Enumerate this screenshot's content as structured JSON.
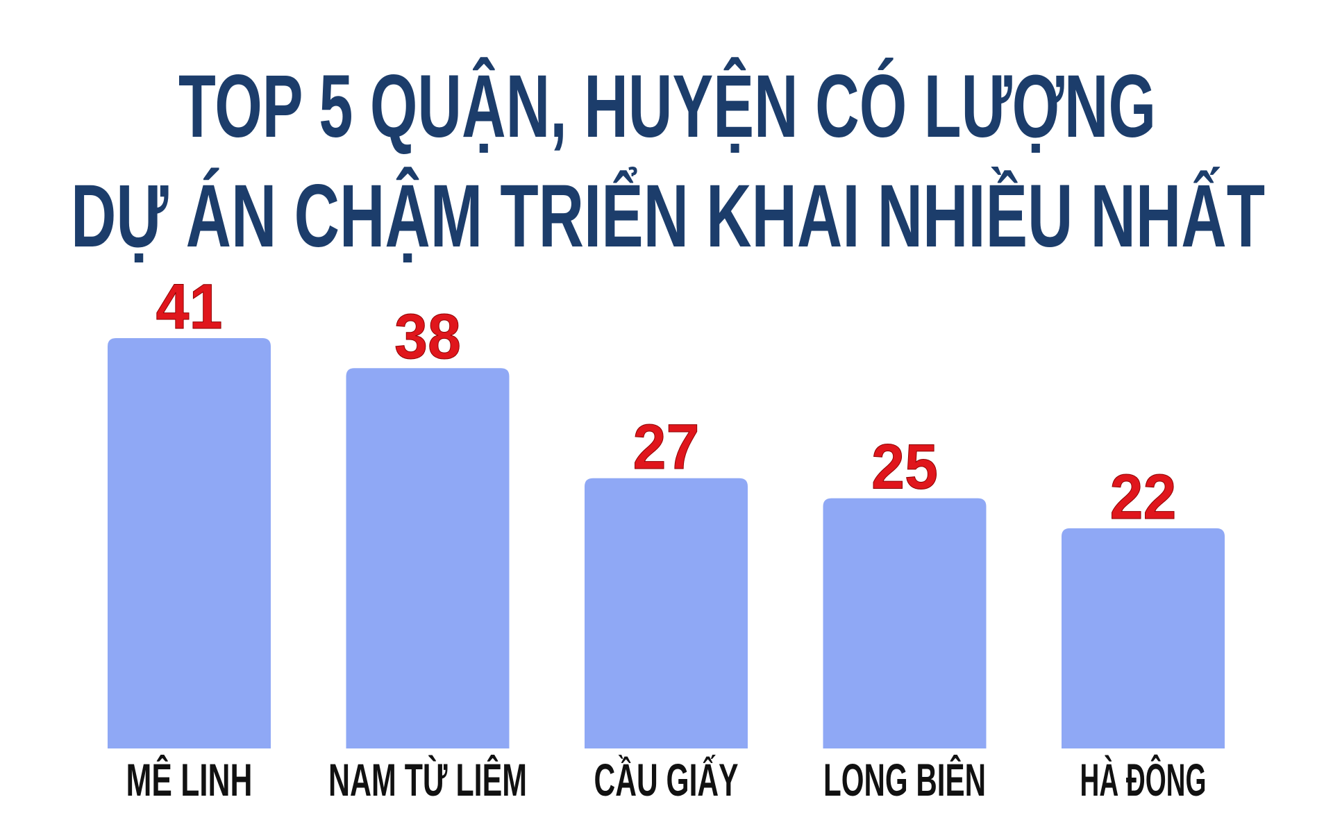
{
  "chart_data": {
    "type": "bar",
    "title": [
      "TOP 5 QUẬN, HUYỆN CÓ LƯỢNG",
      "DỰ ÁN CHẬM TRIỂN KHAI NHIỀU NHẤT"
    ],
    "categories": [
      "MÊ LINH",
      "NAM TỪ LIÊM",
      "CẦU GIẤY",
      "LONG BIÊN",
      "HÀ ĐÔNG"
    ],
    "values": [
      41,
      38,
      27,
      25,
      22
    ],
    "color": "#8fa8f5",
    "label_color": "#e0161c",
    "title_color": "#1c3d6b"
  }
}
